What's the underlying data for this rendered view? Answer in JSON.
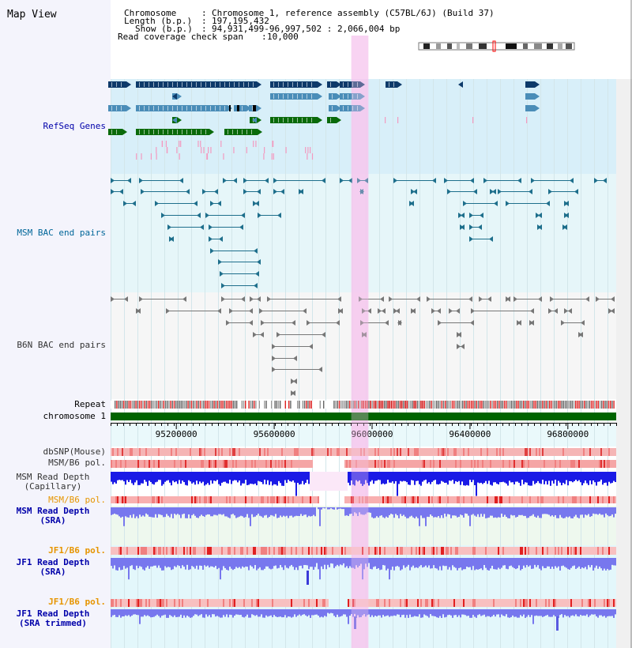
{
  "title": "Map View",
  "info": {
    "chromosome_label": "Chromosome",
    "chromosome_value": "Chromosome 1, reference assembly (C57BL/6J) (Build 37)",
    "length_label": "Length (b.p.)",
    "length_value": "197,195,432",
    "show_label": "Show (b.p.)",
    "show_value": "94,931,499-96,997,502 : 2,066,004 bp",
    "coverage_label": "Read coverage check span",
    "coverage_value": "10,000"
  },
  "tracks": {
    "refseq": "RefSeq Genes",
    "msm_bac": "MSM BAC end pairs",
    "b6n_bac": "B6N BAC end pairs",
    "repeat": "Repeat",
    "chromosome": "chromosome 1",
    "dbsnp": "dbSNP(Mouse)",
    "msm_b6_pol_1": "MSM/B6 pol.",
    "msm_depth_cap_1": "MSM Read Depth",
    "msm_depth_cap_2": "(Capillary)",
    "msm_b6_pol_2": "MSM/B6 pol.",
    "msm_depth_sra_1": "MSM Read Depth",
    "msm_depth_sra_2": "(SRA)",
    "jf1_b6_pol_1": "JF1/B6 pol.",
    "jf1_depth_sra_1": "JF1 Read Depth",
    "jf1_depth_sra_2": "(SRA)",
    "jf1_b6_pol_2": "JF1/B6 pol.",
    "jf1_depth_trim_1": "JF1 Read Depth",
    "jf1_depth_trim_2": "(SRA trimmed)"
  },
  "ruler": {
    "unit": "bp",
    "range_start": 94931499,
    "range_end": 96997502,
    "ticks": [
      95200000,
      95600000,
      96000000,
      96400000,
      96800000
    ]
  },
  "highlight_region": [
    95915000,
    95985000
  ],
  "colors": {
    "label_blue": "#0000aa",
    "label_teal": "#006699",
    "label_gray": "#333333",
    "label_orange": "#e69500",
    "refseq_navy": "#0d3a6a",
    "refseq_steel": "#4a8db8",
    "refseq_green": "#0a6a0a",
    "msm_bac_teal": "#1e6f8c",
    "b6n_bac_gray": "#777777",
    "highlight_pink": "#f6c8ef",
    "chromosome_green": "#006400",
    "depth_blue": "#1a1ae6",
    "depth_light_blue": "#7777ee"
  }
}
